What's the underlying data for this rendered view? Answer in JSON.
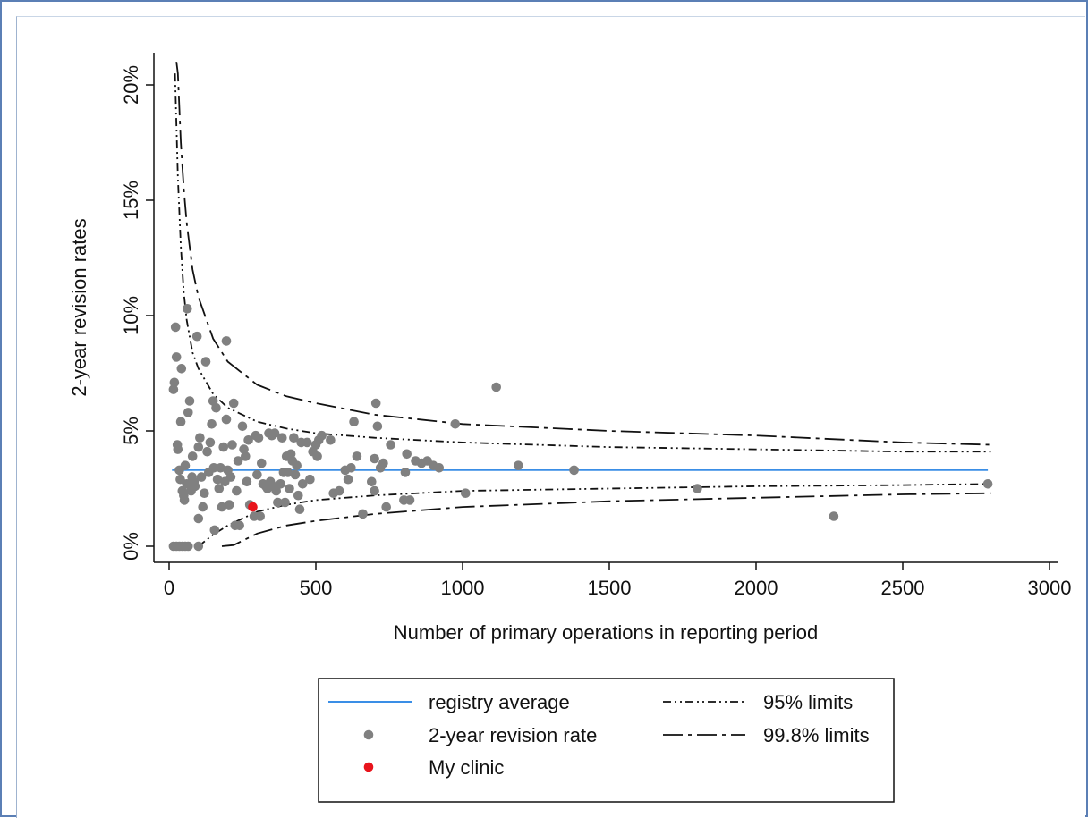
{
  "chart_data": {
    "type": "scatter",
    "title": "",
    "xlabel": "Number of primary operations in reporting period",
    "ylabel": "2-year revision rates",
    "xlim": [
      0,
      3000
    ],
    "ylim": [
      0,
      20
    ],
    "x_ticks": [
      0,
      500,
      1000,
      1500,
      2000,
      2500,
      3000
    ],
    "y_ticks": [
      0,
      5,
      10,
      15,
      20
    ],
    "x_tick_labels": [
      "0",
      "500",
      "1000",
      "1500",
      "2000",
      "2500",
      "3000"
    ],
    "y_tick_labels": [
      "0%",
      "5%",
      "10%",
      "15%",
      "20%"
    ],
    "grid": false,
    "legend_position": "bottom",
    "registry_average": 3.3,
    "series": [
      {
        "name": "registry average",
        "kind": "line",
        "color": "#3a8ee6",
        "x": [
          10,
          2790
        ],
        "values": [
          3.3,
          3.3
        ]
      },
      {
        "name": "95% limits",
        "kind": "line",
        "dash": "dash-dot-dot",
        "color": "#111111",
        "upper": {
          "x": [
            20,
            30,
            40,
            50,
            60,
            80,
            100,
            150,
            200,
            300,
            400,
            500,
            700,
            1000,
            1500,
            2000,
            2500,
            2800
          ],
          "values": [
            20.5,
            16.0,
            13.0,
            11.0,
            9.8,
            8.4,
            7.7,
            6.6,
            6.0,
            5.4,
            5.1,
            4.9,
            4.7,
            4.5,
            4.3,
            4.2,
            4.1,
            4.1
          ]
        },
        "lower": {
          "x": [
            100,
            150,
            200,
            250,
            300,
            400,
            500,
            700,
            1000,
            1500,
            2000,
            2500,
            2800
          ],
          "values": [
            0.0,
            0.5,
            0.9,
            1.2,
            1.5,
            1.8,
            2.0,
            2.2,
            2.4,
            2.5,
            2.6,
            2.65,
            2.7
          ]
        }
      },
      {
        "name": "99.8% limits",
        "kind": "line",
        "dash": "long-dash-dot",
        "color": "#111111",
        "upper": {
          "x": [
            25,
            30,
            40,
            50,
            60,
            80,
            100,
            150,
            200,
            300,
            400,
            500,
            700,
            1000,
            1500,
            2000,
            2500,
            2800
          ],
          "values": [
            21.0,
            20.5,
            17.5,
            15.5,
            14.0,
            12.0,
            10.8,
            9.0,
            8.0,
            7.0,
            6.5,
            6.2,
            5.7,
            5.3,
            5.0,
            4.8,
            4.5,
            4.4
          ]
        },
        "lower": {
          "x": [
            180,
            220,
            260,
            300,
            400,
            500,
            700,
            1000,
            1500,
            2000,
            2500,
            2800
          ],
          "values": [
            0.0,
            0.05,
            0.3,
            0.55,
            0.9,
            1.1,
            1.4,
            1.7,
            1.95,
            2.1,
            2.25,
            2.3
          ]
        }
      },
      {
        "name": "2-year revision rate",
        "kind": "scatter",
        "color": "#808080",
        "points": [
          [
            15,
            0
          ],
          [
            25,
            0
          ],
          [
            35,
            0
          ],
          [
            45,
            0
          ],
          [
            55,
            0
          ],
          [
            65,
            0
          ],
          [
            100,
            0
          ],
          [
            18,
            7.1
          ],
          [
            15,
            6.8
          ],
          [
            22,
            9.5
          ],
          [
            25,
            8.2
          ],
          [
            28,
            4.4
          ],
          [
            30,
            4.2
          ],
          [
            35,
            3.3
          ],
          [
            38,
            2.9
          ],
          [
            40,
            5.4
          ],
          [
            42,
            7.7
          ],
          [
            45,
            2.4
          ],
          [
            50,
            2.2
          ],
          [
            52,
            2.0
          ],
          [
            55,
            3.5
          ],
          [
            60,
            2.7
          ],
          [
            62,
            10.3
          ],
          [
            65,
            5.8
          ],
          [
            70,
            6.3
          ],
          [
            75,
            2.4
          ],
          [
            78,
            3.0
          ],
          [
            80,
            3.9
          ],
          [
            85,
            2.8
          ],
          [
            88,
            2.6
          ],
          [
            95,
            9.1
          ],
          [
            100,
            1.2
          ],
          [
            100,
            4.3
          ],
          [
            105,
            4.7
          ],
          [
            110,
            3.0
          ],
          [
            115,
            1.7
          ],
          [
            120,
            2.3
          ],
          [
            125,
            8.0
          ],
          [
            130,
            4.1
          ],
          [
            135,
            3.2
          ],
          [
            140,
            4.5
          ],
          [
            145,
            5.3
          ],
          [
            150,
            6.3
          ],
          [
            152,
            3.4
          ],
          [
            155,
            0.7
          ],
          [
            160,
            6.0
          ],
          [
            165,
            2.9
          ],
          [
            170,
            2.5
          ],
          [
            175,
            3.4
          ],
          [
            180,
            1.7
          ],
          [
            185,
            4.3
          ],
          [
            190,
            2.8
          ],
          [
            195,
            5.5
          ],
          [
            195,
            8.9
          ],
          [
            200,
            3.3
          ],
          [
            205,
            1.8
          ],
          [
            210,
            3.0
          ],
          [
            215,
            4.4
          ],
          [
            220,
            6.2
          ],
          [
            225,
            0.9
          ],
          [
            230,
            2.4
          ],
          [
            235,
            3.7
          ],
          [
            240,
            0.9
          ],
          [
            250,
            5.2
          ],
          [
            255,
            4.2
          ],
          [
            260,
            3.9
          ],
          [
            265,
            2.8
          ],
          [
            270,
            4.6
          ],
          [
            275,
            1.8
          ],
          [
            290,
            1.3
          ],
          [
            295,
            4.8
          ],
          [
            300,
            3.1
          ],
          [
            305,
            4.7
          ],
          [
            310,
            1.3
          ],
          [
            315,
            3.6
          ],
          [
            320,
            2.7
          ],
          [
            330,
            2.6
          ],
          [
            335,
            2.5
          ],
          [
            340,
            4.9
          ],
          [
            345,
            2.8
          ],
          [
            350,
            4.8
          ],
          [
            355,
            2.6
          ],
          [
            360,
            4.9
          ],
          [
            365,
            2.4
          ],
          [
            370,
            1.9
          ],
          [
            380,
            2.7
          ],
          [
            385,
            4.7
          ],
          [
            390,
            3.2
          ],
          [
            395,
            1.9
          ],
          [
            400,
            3.9
          ],
          [
            405,
            3.2
          ],
          [
            410,
            2.5
          ],
          [
            415,
            4.0
          ],
          [
            420,
            3.7
          ],
          [
            425,
            4.7
          ],
          [
            430,
            3.1
          ],
          [
            435,
            3.5
          ],
          [
            440,
            2.2
          ],
          [
            445,
            1.6
          ],
          [
            450,
            4.5
          ],
          [
            455,
            2.7
          ],
          [
            470,
            4.5
          ],
          [
            480,
            2.9
          ],
          [
            490,
            4.1
          ],
          [
            500,
            4.4
          ],
          [
            505,
            3.9
          ],
          [
            510,
            4.6
          ],
          [
            520,
            4.8
          ],
          [
            550,
            4.6
          ],
          [
            560,
            2.3
          ],
          [
            580,
            2.4
          ],
          [
            600,
            3.3
          ],
          [
            610,
            2.9
          ],
          [
            620,
            3.4
          ],
          [
            630,
            5.4
          ],
          [
            640,
            3.9
          ],
          [
            660,
            1.4
          ],
          [
            690,
            2.8
          ],
          [
            700,
            2.4
          ],
          [
            700,
            3.8
          ],
          [
            705,
            6.2
          ],
          [
            710,
            5.2
          ],
          [
            720,
            3.4
          ],
          [
            730,
            3.6
          ],
          [
            740,
            1.7
          ],
          [
            755,
            4.4
          ],
          [
            800,
            2.0
          ],
          [
            805,
            3.2
          ],
          [
            810,
            4.0
          ],
          [
            820,
            2.0
          ],
          [
            840,
            3.7
          ],
          [
            860,
            3.6
          ],
          [
            880,
            3.7
          ],
          [
            900,
            3.5
          ],
          [
            920,
            3.4
          ],
          [
            975,
            5.3
          ],
          [
            1010,
            2.3
          ],
          [
            1115,
            6.9
          ],
          [
            1190,
            3.5
          ],
          [
            1380,
            3.3
          ],
          [
            1800,
            2.5
          ],
          [
            2265,
            1.3
          ],
          [
            2790,
            2.7
          ]
        ]
      },
      {
        "name": "My clinic",
        "kind": "scatter",
        "color": "#e8141c",
        "points": [
          [
            285,
            1.7
          ]
        ]
      }
    ]
  },
  "legend": {
    "items": [
      {
        "label": "registry average",
        "symbol": "line",
        "color": "#3a8ee6"
      },
      {
        "label": "2-year revision rate",
        "symbol": "dot",
        "color": "#808080"
      },
      {
        "label": "My clinic",
        "symbol": "dot",
        "color": "#e8141c"
      },
      {
        "label": "95% limits",
        "symbol": "dash-dot-dot",
        "color": "#111111"
      },
      {
        "label": "99.8% limits",
        "symbol": "long-dash-dot",
        "color": "#111111"
      }
    ]
  }
}
